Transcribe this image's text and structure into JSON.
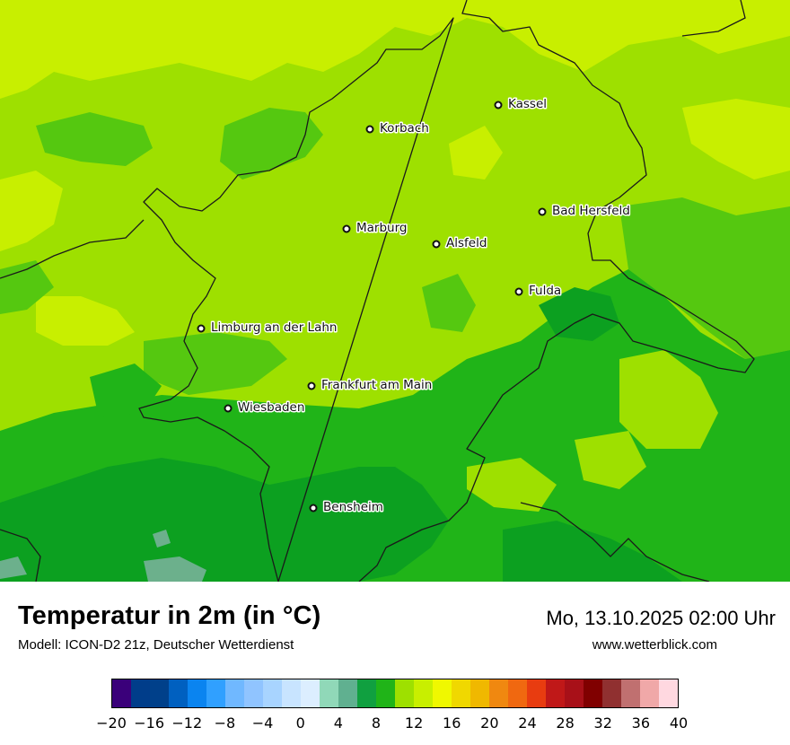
{
  "map": {
    "colors": {
      "light_lime": "#c8ef00",
      "lime": "#9ee000",
      "mid_green": "#55c810",
      "green": "#20b418",
      "dark_green": "#0ca020",
      "sea_green": "#6cb08c",
      "border": "#1a1a1a",
      "city_dot": "#111111"
    },
    "cities": [
      {
        "name": "Kassel"
      },
      {
        "name": "Korbach"
      },
      {
        "name": "Bad Hersfeld"
      },
      {
        "name": "Marburg"
      },
      {
        "name": "Alsfeld"
      },
      {
        "name": "Fulda"
      },
      {
        "name": "Limburg an der Lahn"
      },
      {
        "name": "Frankfurt am Main"
      },
      {
        "name": "Wiesbaden"
      },
      {
        "name": "Bensheim"
      }
    ]
  },
  "footer": {
    "title": "Temperatur in 2m (in °C)",
    "model": "Modell: ICON-D2 21z, Deutscher Wetterdienst",
    "datetime": "Mo, 13.10.2025 02:00 Uhr",
    "website": "www.wetterblick.com"
  },
  "legend": {
    "min": -20,
    "max": 40,
    "step": 2,
    "colors": [
      "#3a007a",
      "#003d8a",
      "#00408a",
      "#0060c0",
      "#0a84f0",
      "#30a0ff",
      "#70b8ff",
      "#90c4ff",
      "#a8d4ff",
      "#c8e4ff",
      "#dceeff",
      "#90d8b8",
      "#60b090",
      "#10a040",
      "#20b418",
      "#9ee000",
      "#c8ef00",
      "#f0f800",
      "#f0d800",
      "#f0b800",
      "#f08810",
      "#f06810",
      "#e83c10",
      "#c01818",
      "#a81018",
      "#800000",
      "#903030",
      "#c07070",
      "#f0a8a8",
      "#ffd8e0"
    ],
    "tick_labels": [
      "−20",
      "−16",
      "−12",
      "−8",
      "−4",
      "0",
      "4",
      "8",
      "12",
      "16",
      "20",
      "24",
      "28",
      "32",
      "36",
      "40"
    ]
  }
}
